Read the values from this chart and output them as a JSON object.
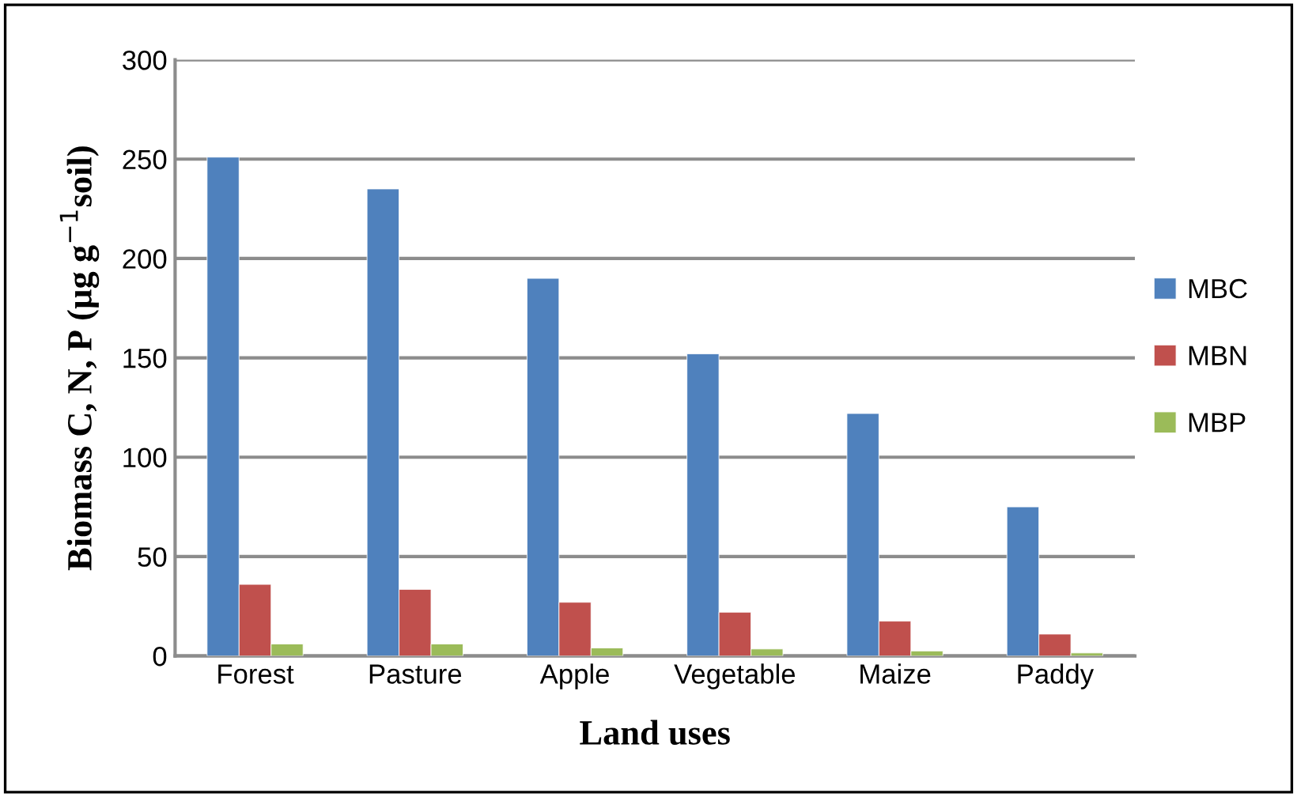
{
  "chart_data": {
    "type": "bar",
    "xlabel": "Land uses",
    "ylabel": "Biomass C, N, P (µg g$^{−1}$soil)",
    "categories": [
      "Forest",
      "Pasture",
      "Apple",
      "Vegetable",
      "Maize",
      "Paddy"
    ],
    "series": [
      {
        "name": "MBC",
        "color": "#4f81bd",
        "values": [
          251,
          235,
          190,
          152,
          122,
          75
        ]
      },
      {
        "name": "MBN",
        "color": "#c0504d",
        "values": [
          36,
          33.5,
          27,
          22,
          17.5,
          11
        ]
      },
      {
        "name": "MBP",
        "color": "#9bbb59",
        "values": [
          6,
          6,
          4,
          3.5,
          2.5,
          1.5
        ]
      }
    ],
    "ylim": [
      0,
      300
    ],
    "yticks": [
      0,
      50,
      100,
      150,
      200,
      250,
      300
    ],
    "grid": "y",
    "legend": "right"
  }
}
